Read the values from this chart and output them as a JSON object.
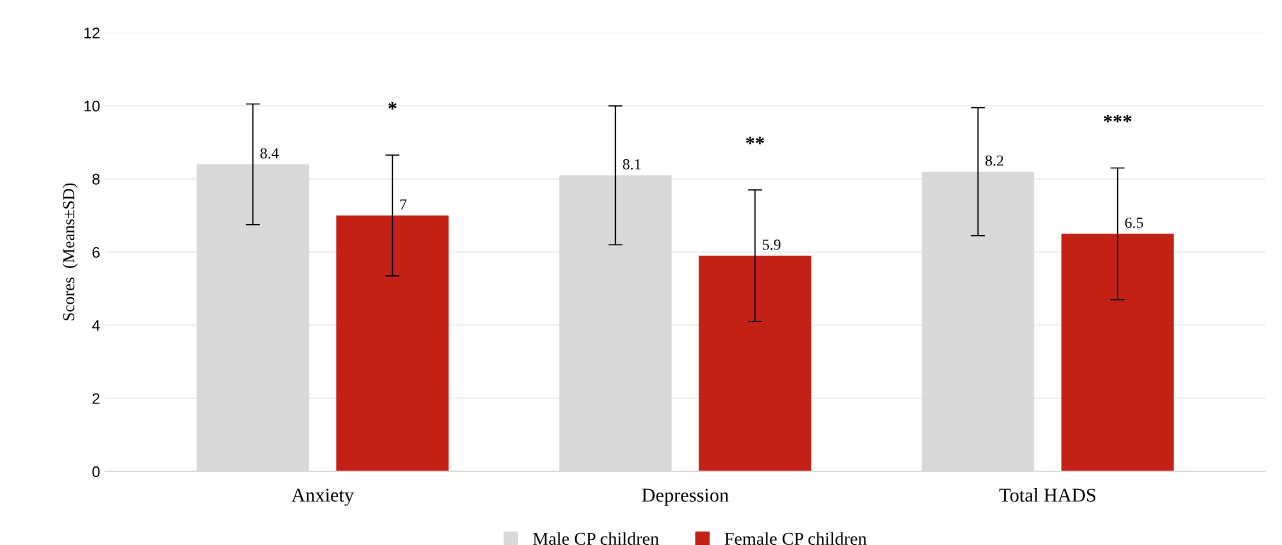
{
  "chart_data": {
    "type": "bar",
    "ylabel": "Scores  (Means±SD)",
    "categories": [
      "Anxiety",
      "Depression",
      "Total HADS"
    ],
    "series": [
      {
        "name": "Male CP children",
        "color": "#d9d9d9",
        "values": [
          8.4,
          8.1,
          8.2
        ],
        "errors": [
          1.65,
          1.9,
          1.75
        ],
        "value_labels": [
          "8.4",
          "8.1",
          "8.2"
        ]
      },
      {
        "name": "Female CP children",
        "color": "#c32116",
        "values": [
          7,
          5.9,
          6.5
        ],
        "errors": [
          1.65,
          1.8,
          1.8
        ],
        "value_labels": [
          "7",
          "5.9",
          "6.5"
        ]
      }
    ],
    "annotations": [
      "*",
      "**",
      "***"
    ],
    "ylim": [
      0,
      12
    ],
    "yticks": [
      0,
      2,
      4,
      6,
      8,
      10,
      12
    ],
    "grid": "y",
    "legend": "bottom"
  }
}
